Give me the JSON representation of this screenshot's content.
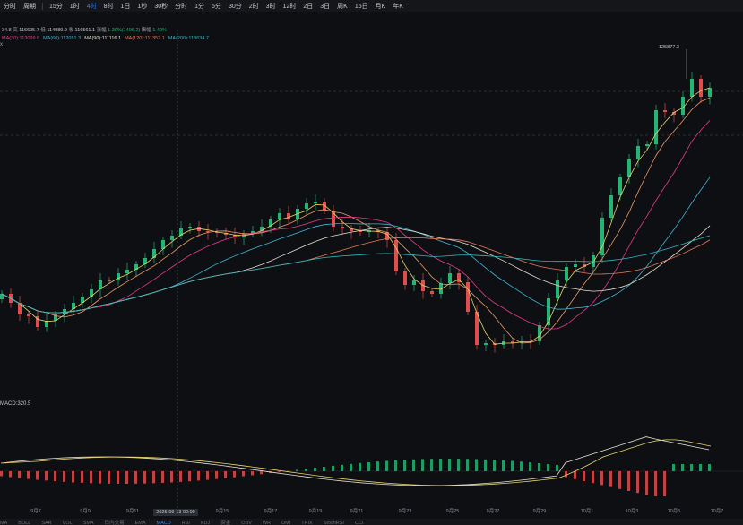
{
  "toolbar": {
    "items": [
      "分时",
      "周期",
      "15分",
      "1时",
      "4时",
      "8时",
      "1日",
      "1秒",
      "30秒",
      "分时",
      "1分",
      "5分",
      "30分",
      "2时",
      "3时",
      "12时",
      "2日",
      "3日",
      "周K",
      "15日",
      "月K",
      "年K"
    ],
    "active_index": 4
  },
  "info": {
    "line1_prefix": "34.8",
    "high_label": "高",
    "high": "116605.7",
    "low_label": "低",
    "low": "114989.9",
    "close_label": "收",
    "close": "116561.1",
    "change_label": "涨幅",
    "change": "1.30%(1496.2)",
    "amp_label": "振幅",
    "amp": "1.40%"
  },
  "ma_legend": [
    {
      "label": "MA(30):113099.8",
      "color": "#e63d8a"
    },
    {
      "label": "MA(60):112051.3",
      "color": "#3fb6d8"
    },
    {
      "label": "MA(90):111116.1",
      "color": "#e8e0d0"
    },
    {
      "label": "MA(120):111352.1",
      "color": "#e8795a"
    },
    {
      "label": "MA(200):113634.7",
      "color": "#2fb9c0"
    }
  ],
  "vol_label": "x",
  "peak_label": "125877.3",
  "macd_label": "MACD:320.5",
  "crosshair_date": "2025-09-13 00:00",
  "x_axis": [
    "9月7",
    "9月9",
    "9月11",
    "9月15",
    "9月17",
    "9月19",
    "9月21",
    "9月23",
    "9月25",
    "9月27",
    "9月29",
    "10月1",
    "10月3",
    "10月5",
    "10月7"
  ],
  "bottom_tabs": [
    "MA",
    "BOLL",
    "SAR",
    "VOL",
    "SMA",
    "日内交易",
    "EMA",
    "MACD",
    "RSI",
    "KDJ",
    "资金",
    "OBV",
    "WR",
    "DMI",
    "TRIX",
    "StochRSI",
    "CCI"
  ],
  "bottom_active": "MACD",
  "colors": {
    "up": "#22b573",
    "down": "#e14c4c",
    "accent": "#3b82f6"
  }
}
